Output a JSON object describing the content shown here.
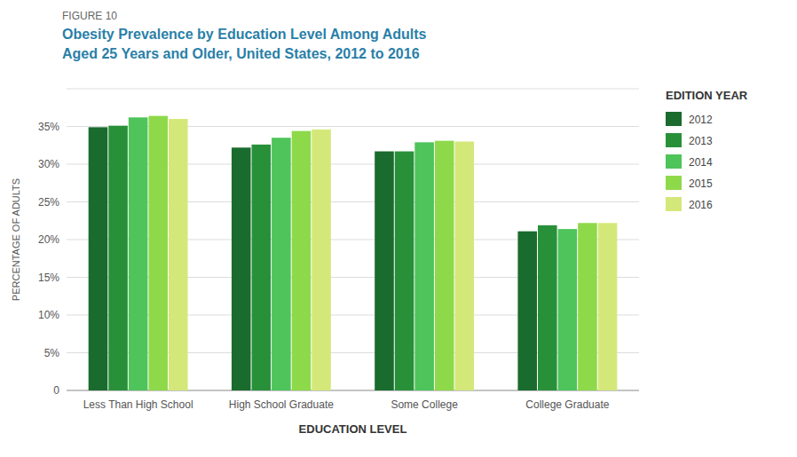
{
  "chart_data": {
    "type": "bar",
    "annotations": [
      "FIGURE 10"
    ],
    "title": "Obesity Prevalence by Education Level Among Adults",
    "subtitle": "Aged 25 Years and Older, United States, 2012 to 2016",
    "x_label": "EDUCATION LEVEL",
    "y_label": "PERCENTAGE OF ADULTS",
    "categories": [
      "Less Than High School",
      "High School Graduate",
      "Some College",
      "College Graduate"
    ],
    "legend_title": "EDITION YEAR",
    "series": [
      {
        "name": "2012",
        "color": "#1a6b2e",
        "values": [
          34.9,
          32.2,
          31.7,
          21.1
        ]
      },
      {
        "name": "2013",
        "color": "#29903a",
        "values": [
          35.1,
          32.6,
          31.7,
          21.9
        ]
      },
      {
        "name": "2014",
        "color": "#4ec45a",
        "values": [
          36.2,
          33.5,
          32.9,
          21.4
        ]
      },
      {
        "name": "2015",
        "color": "#8ed94a",
        "values": [
          36.4,
          34.4,
          33.1,
          22.2
        ]
      },
      {
        "name": "2016",
        "color": "#d4e87a",
        "values": [
          36.0,
          34.6,
          33.0,
          22.2
        ]
      }
    ],
    "ylim": [
      0,
      40
    ],
    "yticks": [
      0,
      {
        "value": 5,
        "label": "5%"
      },
      {
        "value": 10,
        "label": "10%"
      },
      {
        "value": 15,
        "label": "15%"
      },
      {
        "value": 20,
        "label": "20%"
      },
      {
        "value": 25,
        "label": "25%"
      },
      {
        "value": 30,
        "label": "30%"
      },
      {
        "value": 35,
        "label": "35%"
      },
      {
        "value": 40,
        "label": ""
      }
    ],
    "grid": true,
    "legend": "right"
  }
}
